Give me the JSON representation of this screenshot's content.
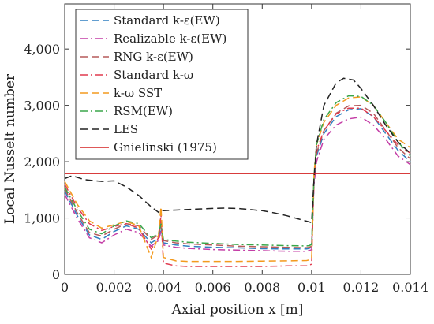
{
  "chart_data": {
    "type": "line",
    "xlabel": "Axial position x [m]",
    "ylabel": "Local Nusselt number",
    "xlim": [
      0,
      0.014
    ],
    "ylim": [
      0,
      4800
    ],
    "xticks": [
      0,
      0.002,
      0.004,
      0.006,
      0.008,
      0.01,
      0.012,
      0.014
    ],
    "xtick_labels": [
      "0",
      "0.002",
      "0.004",
      "0.006",
      "0.008",
      "0.01",
      "0.012",
      "0.014"
    ],
    "yticks": [
      0,
      1000,
      2000,
      3000,
      4000
    ],
    "ytick_labels": [
      "0",
      "1,000",
      "2,000",
      "3,000",
      "4,000"
    ],
    "legend_position": "top-left",
    "series": [
      {
        "name": "Standard k-ε(EW)",
        "color": "#2f7fc1",
        "dash": "dashed",
        "points": [
          [
            0,
            1480
          ],
          [
            0.0005,
            1050
          ],
          [
            0.001,
            700
          ],
          [
            0.0015,
            620
          ],
          [
            0.002,
            760
          ],
          [
            0.0025,
            860
          ],
          [
            0.003,
            800
          ],
          [
            0.0035,
            560
          ],
          [
            0.0038,
            640
          ],
          [
            0.0039,
            820
          ],
          [
            0.004,
            560
          ],
          [
            0.0045,
            520
          ],
          [
            0.005,
            500
          ],
          [
            0.006,
            480
          ],
          [
            0.007,
            470
          ],
          [
            0.008,
            455
          ],
          [
            0.009,
            450
          ],
          [
            0.0098,
            450
          ],
          [
            0.0099,
            460
          ],
          [
            0.01,
            480
          ],
          [
            0.0101,
            1650
          ],
          [
            0.0102,
            2100
          ],
          [
            0.0105,
            2500
          ],
          [
            0.011,
            2800
          ],
          [
            0.0115,
            2920
          ],
          [
            0.012,
            2940
          ],
          [
            0.0125,
            2800
          ],
          [
            0.013,
            2500
          ],
          [
            0.0135,
            2200
          ],
          [
            0.014,
            2000
          ]
        ]
      },
      {
        "name": "Realizable k-ε(EW)",
        "color": "#c43da6",
        "dash": "dashdot",
        "points": [
          [
            0,
            1420
          ],
          [
            0.0005,
            1000
          ],
          [
            0.001,
            650
          ],
          [
            0.0015,
            560
          ],
          [
            0.002,
            700
          ],
          [
            0.0025,
            800
          ],
          [
            0.003,
            740
          ],
          [
            0.0035,
            500
          ],
          [
            0.0038,
            600
          ],
          [
            0.0039,
            760
          ],
          [
            0.004,
            520
          ],
          [
            0.0045,
            480
          ],
          [
            0.005,
            460
          ],
          [
            0.006,
            440
          ],
          [
            0.007,
            430
          ],
          [
            0.008,
            420
          ],
          [
            0.009,
            410
          ],
          [
            0.0098,
            410
          ],
          [
            0.0099,
            420
          ],
          [
            0.01,
            440
          ],
          [
            0.0101,
            1600
          ],
          [
            0.0102,
            2000
          ],
          [
            0.0105,
            2400
          ],
          [
            0.011,
            2650
          ],
          [
            0.0115,
            2760
          ],
          [
            0.012,
            2790
          ],
          [
            0.0125,
            2650
          ],
          [
            0.013,
            2400
          ],
          [
            0.0135,
            2100
          ],
          [
            0.014,
            1950
          ]
        ]
      },
      {
        "name": "RNG k-ε(EW)",
        "color": "#b55a5a",
        "dash": "dashed",
        "points": [
          [
            0,
            1520
          ],
          [
            0.0005,
            1100
          ],
          [
            0.001,
            740
          ],
          [
            0.0015,
            680
          ],
          [
            0.002,
            800
          ],
          [
            0.0025,
            900
          ],
          [
            0.003,
            860
          ],
          [
            0.0035,
            620
          ],
          [
            0.0038,
            700
          ],
          [
            0.0039,
            880
          ],
          [
            0.004,
            600
          ],
          [
            0.0045,
            560
          ],
          [
            0.005,
            540
          ],
          [
            0.006,
            520
          ],
          [
            0.007,
            500
          ],
          [
            0.008,
            490
          ],
          [
            0.009,
            480
          ],
          [
            0.0098,
            475
          ],
          [
            0.0099,
            480
          ],
          [
            0.01,
            500
          ],
          [
            0.0101,
            1700
          ],
          [
            0.0102,
            2150
          ],
          [
            0.0105,
            2550
          ],
          [
            0.011,
            2860
          ],
          [
            0.0115,
            2990
          ],
          [
            0.012,
            3000
          ],
          [
            0.0125,
            2860
          ],
          [
            0.013,
            2560
          ],
          [
            0.0135,
            2250
          ],
          [
            0.014,
            2050
          ]
        ]
      },
      {
        "name": "Standard k-ω",
        "color": "#e03a4e",
        "dash": "dashdot",
        "points": [
          [
            0,
            1600
          ],
          [
            0.0005,
            1200
          ],
          [
            0.001,
            900
          ],
          [
            0.0015,
            780
          ],
          [
            0.002,
            850
          ],
          [
            0.0025,
            900
          ],
          [
            0.003,
            820
          ],
          [
            0.0035,
            450
          ],
          [
            0.0038,
            650
          ],
          [
            0.0039,
            1050
          ],
          [
            0.004,
            200
          ],
          [
            0.0045,
            150
          ],
          [
            0.005,
            140
          ],
          [
            0.006,
            140
          ],
          [
            0.007,
            140
          ],
          [
            0.008,
            140
          ],
          [
            0.009,
            150
          ],
          [
            0.0098,
            150
          ],
          [
            0.0099,
            160
          ],
          [
            0.01,
            180
          ],
          [
            0.0101,
            1750
          ],
          [
            0.0102,
            2200
          ],
          [
            0.0105,
            2550
          ],
          [
            0.011,
            2850
          ],
          [
            0.0115,
            2950
          ],
          [
            0.012,
            2950
          ],
          [
            0.0125,
            2800
          ],
          [
            0.013,
            2550
          ],
          [
            0.0135,
            2300
          ],
          [
            0.014,
            2150
          ]
        ]
      },
      {
        "name": "k-ω SST",
        "color": "#f39a1e",
        "dash": "dashed",
        "points": [
          [
            0,
            1650
          ],
          [
            0.0005,
            1250
          ],
          [
            0.001,
            950
          ],
          [
            0.0015,
            820
          ],
          [
            0.002,
            880
          ],
          [
            0.0025,
            940
          ],
          [
            0.003,
            860
          ],
          [
            0.0035,
            300
          ],
          [
            0.0038,
            700
          ],
          [
            0.0039,
            1200
          ],
          [
            0.004,
            300
          ],
          [
            0.0045,
            240
          ],
          [
            0.005,
            230
          ],
          [
            0.006,
            230
          ],
          [
            0.007,
            230
          ],
          [
            0.008,
            235
          ],
          [
            0.009,
            240
          ],
          [
            0.0098,
            245
          ],
          [
            0.0099,
            255
          ],
          [
            0.01,
            270
          ],
          [
            0.0101,
            1800
          ],
          [
            0.0102,
            2300
          ],
          [
            0.0105,
            2700
          ],
          [
            0.011,
            3000
          ],
          [
            0.0115,
            3130
          ],
          [
            0.012,
            3150
          ],
          [
            0.0125,
            3000
          ],
          [
            0.013,
            2700
          ],
          [
            0.0135,
            2400
          ],
          [
            0.014,
            2250
          ]
        ]
      },
      {
        "name": "RSM(EW)",
        "color": "#3aa64a",
        "dash": "dashdot",
        "points": [
          [
            0,
            1550
          ],
          [
            0.0005,
            1150
          ],
          [
            0.001,
            800
          ],
          [
            0.0015,
            720
          ],
          [
            0.002,
            860
          ],
          [
            0.0025,
            950
          ],
          [
            0.003,
            900
          ],
          [
            0.0035,
            650
          ],
          [
            0.0038,
            720
          ],
          [
            0.0039,
            900
          ],
          [
            0.004,
            620
          ],
          [
            0.0045,
            590
          ],
          [
            0.005,
            570
          ],
          [
            0.006,
            550
          ],
          [
            0.007,
            530
          ],
          [
            0.008,
            520
          ],
          [
            0.009,
            510
          ],
          [
            0.0098,
            505
          ],
          [
            0.0099,
            510
          ],
          [
            0.01,
            530
          ],
          [
            0.0101,
            1750
          ],
          [
            0.0102,
            2300
          ],
          [
            0.0105,
            2750
          ],
          [
            0.011,
            3050
          ],
          [
            0.0115,
            3170
          ],
          [
            0.012,
            3160
          ],
          [
            0.0125,
            3000
          ],
          [
            0.013,
            2700
          ],
          [
            0.0135,
            2350
          ],
          [
            0.014,
            2100
          ]
        ]
      },
      {
        "name": "LES",
        "color": "#222222",
        "dash": "dashed",
        "points": [
          [
            0,
            1700
          ],
          [
            0.0003,
            1750
          ],
          [
            0.0008,
            1680
          ],
          [
            0.0015,
            1650
          ],
          [
            0.002,
            1660
          ],
          [
            0.0025,
            1550
          ],
          [
            0.003,
            1400
          ],
          [
            0.0035,
            1200
          ],
          [
            0.0038,
            1100
          ],
          [
            0.0039,
            1150
          ],
          [
            0.004,
            1130
          ],
          [
            0.0045,
            1140
          ],
          [
            0.005,
            1150
          ],
          [
            0.006,
            1170
          ],
          [
            0.0065,
            1175
          ],
          [
            0.007,
            1170
          ],
          [
            0.0075,
            1150
          ],
          [
            0.008,
            1130
          ],
          [
            0.0085,
            1090
          ],
          [
            0.009,
            1040
          ],
          [
            0.0095,
            980
          ],
          [
            0.01,
            920
          ],
          [
            0.0101,
            1700
          ],
          [
            0.0102,
            2300
          ],
          [
            0.0105,
            3000
          ],
          [
            0.011,
            3400
          ],
          [
            0.0113,
            3480
          ],
          [
            0.0117,
            3450
          ],
          [
            0.012,
            3300
          ],
          [
            0.0125,
            3000
          ],
          [
            0.013,
            2650
          ],
          [
            0.0135,
            2350
          ],
          [
            0.014,
            2150
          ]
        ]
      },
      {
        "name": "Gnielinski (1975)",
        "color": "#d32020",
        "dash": "solid",
        "points": [
          [
            0,
            1790
          ],
          [
            0.014,
            1790
          ]
        ]
      }
    ]
  }
}
